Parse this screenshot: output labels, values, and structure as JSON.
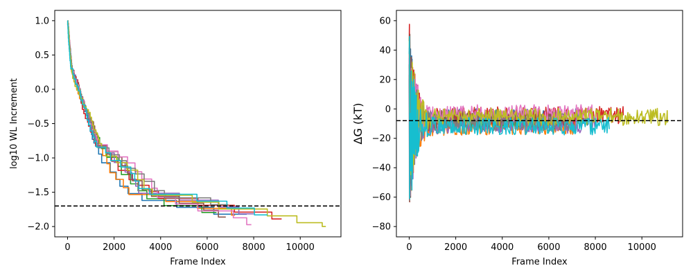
{
  "palette": [
    "#1f77b4",
    "#ff7f0e",
    "#2ca02c",
    "#d62728",
    "#9467bd",
    "#8c564b",
    "#e377c2",
    "#7f7f7f",
    "#bcbd22",
    "#17becf"
  ],
  "chart_data": [
    {
      "type": "line",
      "xlabel": "Frame Index",
      "ylabel": "log10 WL Increment",
      "xlim": [
        -550,
        11750
      ],
      "ylim": [
        -2.15,
        1.15
      ],
      "xticks": [
        0,
        2000,
        4000,
        6000,
        8000,
        10000
      ],
      "yticks": [
        -2.0,
        -1.5,
        -1.0,
        -0.5,
        0.0,
        0.5,
        1.0
      ],
      "ytick_labels": [
        "−2.0",
        "−1.5",
        "−1.0",
        "−0.5",
        "0.0",
        "0.5",
        "1.0"
      ],
      "reference_line": {
        "y": -1.7,
        "style": "dashed",
        "color": "#000000"
      },
      "series": [
        {
          "color": "#1f77b4",
          "end_x": 7700
        },
        {
          "color": "#ff7f0e",
          "end_x": 7200
        },
        {
          "color": "#2ca02c",
          "end_x": 6400
        },
        {
          "color": "#d62728",
          "end_x": 9200
        },
        {
          "color": "#9467bd",
          "end_x": 8000
        },
        {
          "color": "#8c564b",
          "end_x": 6800
        },
        {
          "color": "#e377c2",
          "end_x": 7900
        },
        {
          "color": "#7f7f7f",
          "end_x": 6900
        },
        {
          "color": "#bcbd22",
          "end_x": 11100
        },
        {
          "color": "#17becf",
          "end_x": 8600
        }
      ]
    },
    {
      "type": "line",
      "xlabel": "Frame Index",
      "ylabel": "ΔG (kT)",
      "xlim": [
        -550,
        11750
      ],
      "ylim": [
        -87,
        67
      ],
      "xticks": [
        0,
        2000,
        4000,
        6000,
        8000,
        10000
      ],
      "yticks": [
        -80,
        -60,
        -40,
        -20,
        0,
        20,
        40,
        60
      ],
      "ytick_labels": [
        "−80",
        "−60",
        "−40",
        "−20",
        "0",
        "20",
        "40",
        "60"
      ],
      "reference_line": {
        "y": -8,
        "style": "dashed",
        "color": "#000000"
      },
      "series": [
        {
          "color": "#1f77b4",
          "end_x": 7700
        },
        {
          "color": "#ff7f0e",
          "end_x": 7200
        },
        {
          "color": "#2ca02c",
          "end_x": 6400
        },
        {
          "color": "#d62728",
          "end_x": 9200
        },
        {
          "color": "#9467bd",
          "end_x": 8000
        },
        {
          "color": "#8c564b",
          "end_x": 6800
        },
        {
          "color": "#e377c2",
          "end_x": 7900
        },
        {
          "color": "#7f7f7f",
          "end_x": 6900
        },
        {
          "color": "#bcbd22",
          "end_x": 11100
        },
        {
          "color": "#17becf",
          "end_x": 8600
        }
      ]
    }
  ]
}
